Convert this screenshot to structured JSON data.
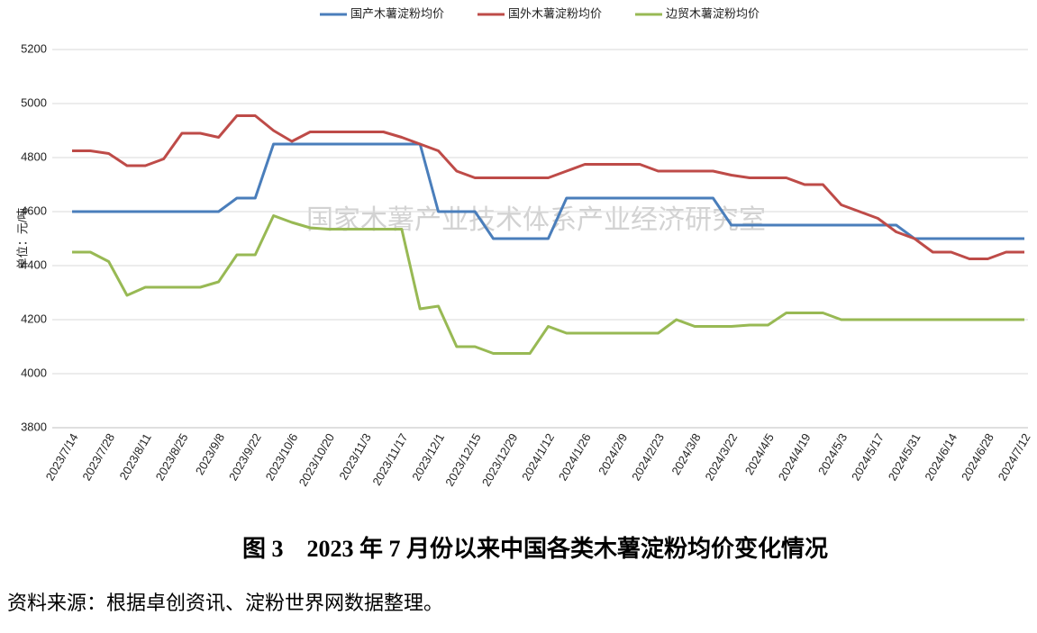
{
  "chart_data": {
    "type": "line",
    "y_label": "单位：元/吨",
    "watermark": "国家木薯产业技术体系产业经济研究室",
    "caption": "图 3　2023 年 7 月份以来中国各类木薯淀粉均价变化情况",
    "source": "资料来源：根据卓创资讯、淀粉世界网数据整理。",
    "categories": [
      "2023/7/14",
      null,
      "2023/7/28",
      null,
      "2023/8/11",
      null,
      "2023/8/25",
      null,
      "2023/9/8",
      null,
      "2023/9/22",
      null,
      "2023/10/6",
      null,
      "2023/10/20",
      null,
      "2023/11/3",
      null,
      "2023/11/17",
      null,
      "2023/12/1",
      null,
      "2023/12/15",
      null,
      "2023/12/29",
      null,
      "2024/1/12",
      null,
      "2024/1/26",
      null,
      "2024/2/9",
      null,
      "2024/2/23",
      null,
      "2024/3/8",
      null,
      "2024/3/22",
      null,
      "2024/4/5",
      null,
      "2024/4/19",
      null,
      "2024/5/3",
      null,
      "2024/5/17",
      null,
      "2024/5/31",
      null,
      "2024/6/14",
      null,
      "2024/6/28",
      null,
      "2024/7/12"
    ],
    "series": [
      {
        "name": "国产木薯淀粉均价",
        "color": "#4a7ebb",
        "values": [
          4600,
          4600,
          4600,
          4600,
          4600,
          4600,
          4600,
          4600,
          4600,
          4650,
          4650,
          4850,
          4850,
          4850,
          4850,
          4850,
          4850,
          4850,
          4850,
          4850,
          4600,
          4600,
          4600,
          4500,
          4500,
          4500,
          4500,
          4650,
          4650,
          4650,
          4650,
          4650,
          4650,
          4650,
          4650,
          4650,
          4550,
          4550,
          4550,
          4550,
          4550,
          4550,
          4550,
          4550,
          4550,
          4550,
          4500,
          4500,
          4500,
          4500,
          4500,
          4500,
          4500
        ]
      },
      {
        "name": "国外木薯淀粉均价",
        "color": "#be4b48",
        "values": [
          4825,
          4825,
          4815,
          4770,
          4770,
          4795,
          4890,
          4890,
          4875,
          4955,
          4955,
          4900,
          4860,
          4895,
          4895,
          4895,
          4895,
          4895,
          4875,
          4850,
          4825,
          4750,
          4725,
          4725,
          4725,
          4725,
          4725,
          4750,
          4775,
          4775,
          4775,
          4775,
          4750,
          4750,
          4750,
          4750,
          4735,
          4725,
          4725,
          4725,
          4700,
          4700,
          4625,
          4600,
          4575,
          4525,
          4500,
          4450,
          4450,
          4425,
          4425,
          4450,
          4450
        ]
      },
      {
        "name": "边贸木薯淀粉均价",
        "color": "#98b954",
        "values": [
          4450,
          4450,
          4415,
          4290,
          4320,
          4320,
          4320,
          4320,
          4340,
          4440,
          4440,
          4585,
          4560,
          4540,
          4535,
          4535,
          4535,
          4535,
          4535,
          4240,
          4250,
          4100,
          4100,
          4075,
          4075,
          4075,
          4175,
          4150,
          4150,
          4150,
          4150,
          4150,
          4150,
          4200,
          4175,
          4175,
          4175,
          4180,
          4180,
          4225,
          4225,
          4225,
          4200,
          4200,
          4200,
          4200,
          4200,
          4200,
          4200,
          4200,
          4200,
          4200,
          4200
        ]
      }
    ],
    "ylim": [
      3800,
      5200
    ],
    "yticks": [
      3800,
      4000,
      4200,
      4400,
      4600,
      4800,
      5000,
      5200
    ],
    "grid": true
  }
}
